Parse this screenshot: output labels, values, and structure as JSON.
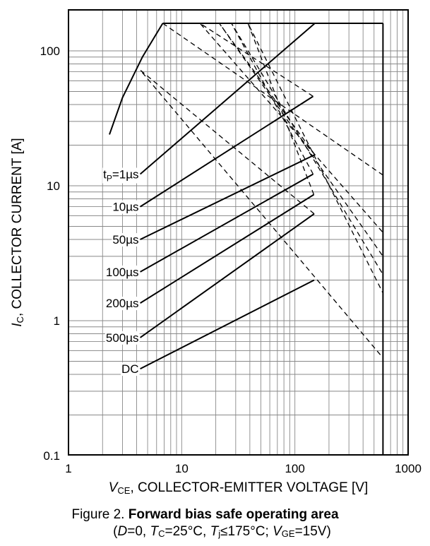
{
  "chart_data": {
    "type": "line",
    "x_scale": "log",
    "y_scale": "log",
    "xlim": [
      1,
      1000
    ],
    "ylim": [
      0.1,
      200
    ],
    "grid": true,
    "x_ticks": [
      {
        "value": 1,
        "label": "1"
      },
      {
        "value": 10,
        "label": "10"
      },
      {
        "value": 100,
        "label": "100"
      },
      {
        "value": 1000,
        "label": "1000"
      }
    ],
    "y_ticks": [
      {
        "value": 0.1,
        "label": "0.1"
      },
      {
        "value": 1,
        "label": "1"
      },
      {
        "value": 10,
        "label": "10"
      },
      {
        "value": 100,
        "label": "100"
      }
    ],
    "xlabel": {
      "symbol": "V",
      "sub": "CE",
      "text": ", COLLECTOR-EMITTER VOLTAGE [V]"
    },
    "ylabel": {
      "symbol": "I",
      "sub": "C",
      "text": ", COLLECTOR CURRENT [A]"
    },
    "boundary_lines": [
      {
        "name": "max-current-limit",
        "style": "solid",
        "points": [
          [
            6.8,
            160
          ],
          [
            600,
            160
          ]
        ]
      },
      {
        "name": "max-voltage-limit",
        "style": "solid",
        "points": [
          [
            600,
            160
          ],
          [
            600,
            0.1
          ]
        ]
      },
      {
        "name": "on-resistance-limit",
        "style": "solid",
        "points": [
          [
            2.3,
            24
          ],
          [
            3,
            45
          ],
          [
            4.5,
            90
          ],
          [
            6.8,
            160
          ]
        ]
      }
    ],
    "series": [
      {
        "name": "tp=1µs",
        "style": "solid",
        "points": [
          [
            4.3,
            12.2
          ],
          [
            150,
            160
          ]
        ],
        "tail": [
          [
            6.8,
            160
          ],
          [
            600,
            12
          ]
        ]
      },
      {
        "name": "10µs",
        "style": "solid",
        "points": [
          [
            4.3,
            7
          ],
          [
            145,
            46
          ]
        ],
        "tail": [
          [
            145,
            46
          ],
          [
            14.5,
            160
          ],
          [
            600,
            4.5
          ]
        ]
      },
      {
        "name": "50µs",
        "style": "solid",
        "points": [
          [
            4.3,
            4
          ],
          [
            150,
            17
          ]
        ],
        "tail": [
          [
            150,
            17
          ],
          [
            21.5,
            160
          ],
          [
            600,
            3
          ]
        ]
      },
      {
        "name": "100µs",
        "style": "solid",
        "points": [
          [
            4.3,
            2.3
          ],
          [
            145,
            12.2
          ]
        ],
        "tail": [
          [
            145,
            12.2
          ],
          [
            27.5,
            160
          ],
          [
            600,
            2.2
          ]
        ]
      },
      {
        "name": "200µs",
        "style": "solid",
        "points": [
          [
            4.3,
            1.35
          ],
          [
            147,
            8.6
          ]
        ],
        "tail": [
          [
            147,
            8.6
          ],
          [
            38.5,
            160
          ],
          [
            600,
            1.6
          ]
        ]
      },
      {
        "name": "500µs",
        "style": "solid",
        "points": [
          [
            4.3,
            0.75
          ],
          [
            148,
            6.2
          ]
        ],
        "tail": [
          [
            148,
            6.2
          ],
          [
            4.3,
            72
          ],
          [
            600,
            0.53
          ]
        ]
      },
      {
        "name": "DC",
        "style": "solid",
        "points": [
          [
            4.3,
            0.44
          ],
          [
            148,
            2
          ]
        ],
        "tail": []
      }
    ],
    "series_labels": [
      {
        "text_main": "t",
        "text_sub": "P",
        "text_rest": "=1µs",
        "series": 0
      },
      {
        "text_main": "10µs",
        "series": 1
      },
      {
        "text_main": "50µs",
        "series": 2
      },
      {
        "text_main": "100µs",
        "series": 3
      },
      {
        "text_main": "200µs",
        "series": 4
      },
      {
        "text_main": "500µs",
        "series": 5
      },
      {
        "text_main": "DC",
        "series": 6
      }
    ]
  },
  "caption": {
    "prefix": "Figure 2. ",
    "title": "Forward bias safe operating area",
    "conditions": {
      "open": "(",
      "d_sym": "D",
      "d_val": "=0, ",
      "tc_sym": "T",
      "tc_sub": "C",
      "tc_val": "=25°C, ",
      "tj_sym": "T",
      "tj_sub": "j",
      "tj_val": "≤175°C; ",
      "vge_sym": "V",
      "vge_sub": "GE",
      "vge_val": "=15V)"
    }
  }
}
